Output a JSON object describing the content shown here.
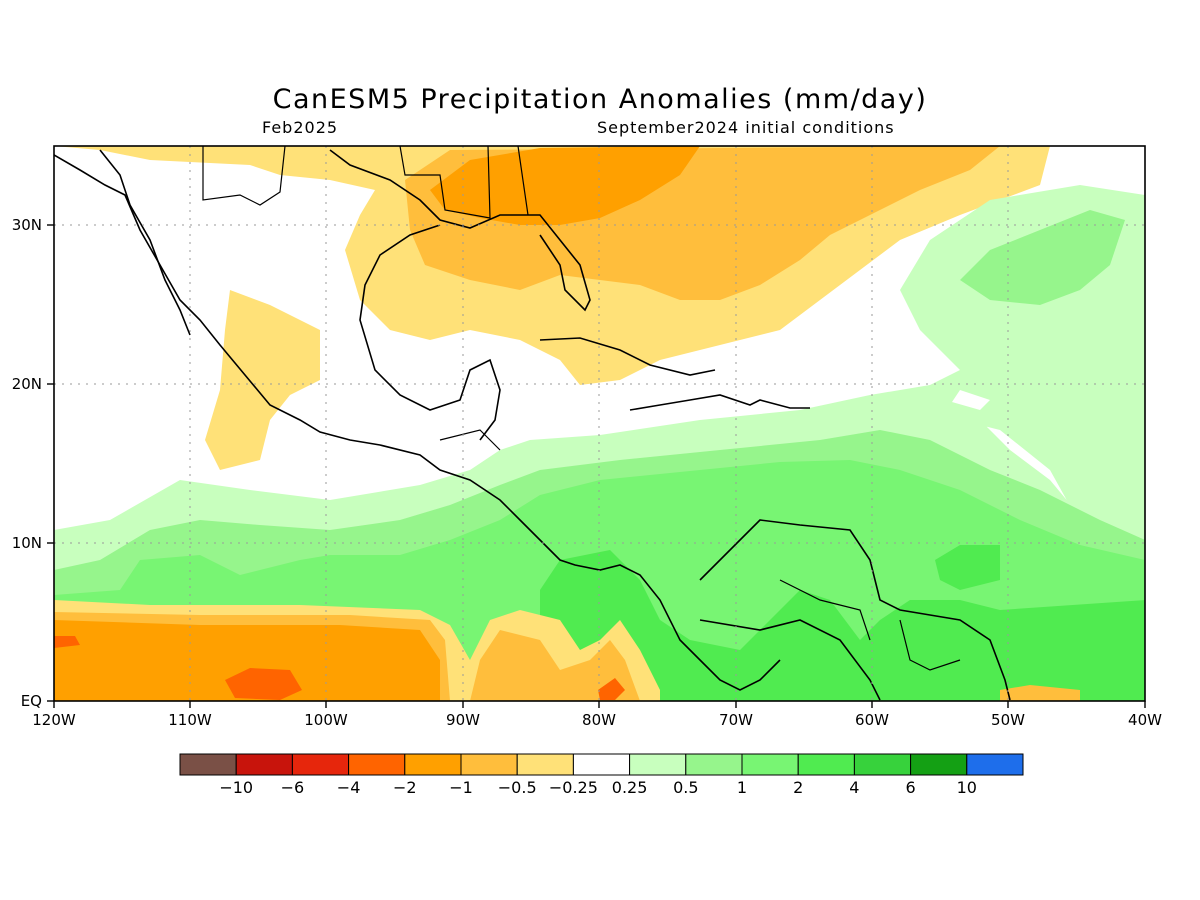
{
  "title": "CanESM5 Precipitation Anomalies (mm/day)",
  "subtitle_left": "Feb2025",
  "subtitle_right": "September2024 initial conditions",
  "map": {
    "lon_range": [
      -120,
      -40
    ],
    "lat_range": [
      0,
      35
    ],
    "gridlines": "dotted",
    "x_ticks": [
      "120W",
      "110W",
      "100W",
      "90W",
      "80W",
      "70W",
      "60W",
      "50W",
      "40W"
    ],
    "y_ticks": [
      "EQ",
      "10N",
      "20N",
      "30N"
    ],
    "field": "precipitation anomaly",
    "pattern": "dry anomalies (orange) over Gulf of Mexico, SE US and western Atlantic and along the eastern Pacific near the equator; wet anomalies (green) over Caribbean Sea, northern South America and tropical Atlantic"
  },
  "colorbar": {
    "colors": [
      "#7a5046",
      "#c8140c",
      "#e6260c",
      "#ff6400",
      "#ffa000",
      "#ffbe3c",
      "#ffe178",
      "#ffffff",
      "#c8ffbe",
      "#96f58c",
      "#78f573",
      "#50eb50",
      "#37d23c",
      "#14a014",
      "#1e6eeb"
    ],
    "labels": [
      "−10",
      "−6",
      "−4",
      "−2",
      "−1",
      "−0.5",
      "−0.25",
      "0.25",
      "0.5",
      "1",
      "2",
      "4",
      "6",
      "10"
    ]
  }
}
